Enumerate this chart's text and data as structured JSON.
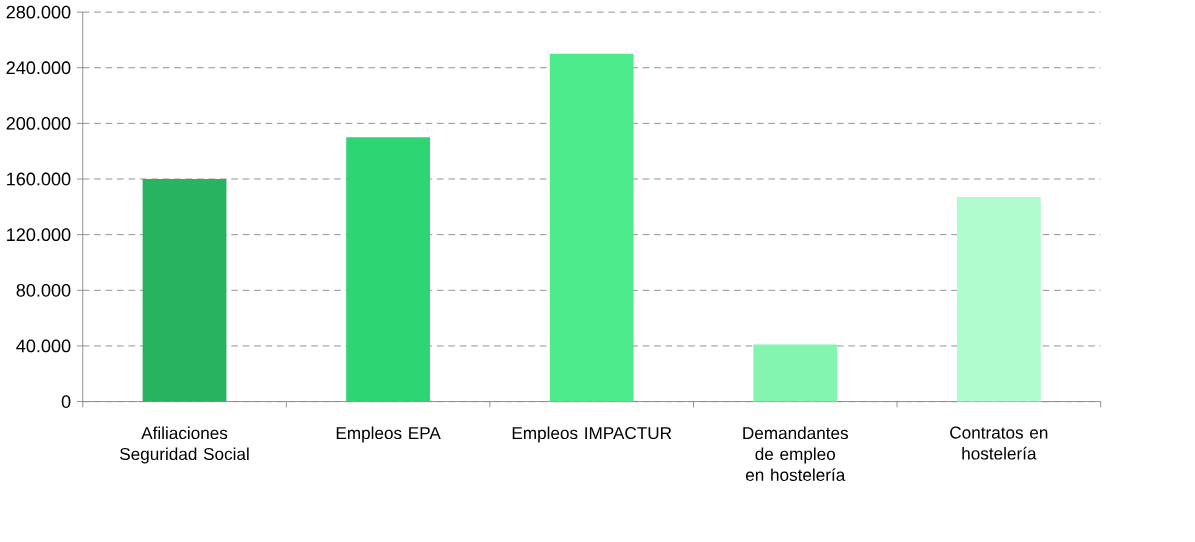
{
  "chart_data": {
    "type": "bar",
    "categories": [
      "Afiliaciones Seguridad Social",
      "Empleos EPA",
      "Empleos IMPACTUR",
      "Demandantes de empleo en hostelería",
      "Contratos en hostelería"
    ],
    "values": [
      160000,
      190000,
      250000,
      41000,
      147000
    ],
    "colors": [
      "#27b360",
      "#2ed573",
      "#4deb8c",
      "#84f5b1",
      "#b0fcd0"
    ],
    "ylim": [
      0,
      280000
    ],
    "yticks": [
      {
        "value": 0,
        "label": "0"
      },
      {
        "value": 40000,
        "label": "40.000"
      },
      {
        "value": 80000,
        "label": "80.000"
      },
      {
        "value": 120000,
        "label": "120.000"
      },
      {
        "value": 160000,
        "label": "160.000"
      },
      {
        "value": 200000,
        "label": "200.000"
      },
      {
        "value": 240000,
        "label": "240.000"
      },
      {
        "value": 280000,
        "label": "280.000"
      }
    ],
    "grid": "y"
  }
}
